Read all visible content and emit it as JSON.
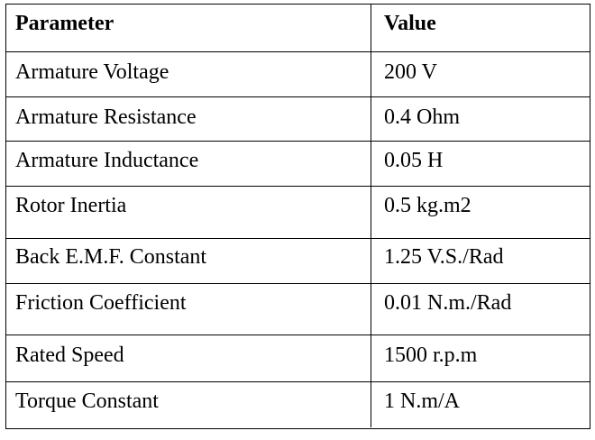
{
  "table": {
    "headers": {
      "parameter": "Parameter",
      "value": "Value"
    },
    "rows": [
      {
        "parameter": "Armature Voltage",
        "value": "200 V"
      },
      {
        "parameter": "Armature Resistance",
        "value": "0.4 Ohm"
      },
      {
        "parameter": "Armature Inductance",
        "value": "0.05 H"
      },
      {
        "parameter": "Rotor Inertia",
        "value": "0.5 kg.m2"
      },
      {
        "parameter": "Back E.M.F. Constant",
        "value": "1.25 V.S./Rad"
      },
      {
        "parameter": "Friction Coefficient",
        "value": "0.01 N.m./Rad"
      },
      {
        "parameter": "Rated Speed",
        "value": "1500 r.p.m"
      },
      {
        "parameter": "Torque Constant",
        "value": "1 N.m/A"
      }
    ]
  }
}
